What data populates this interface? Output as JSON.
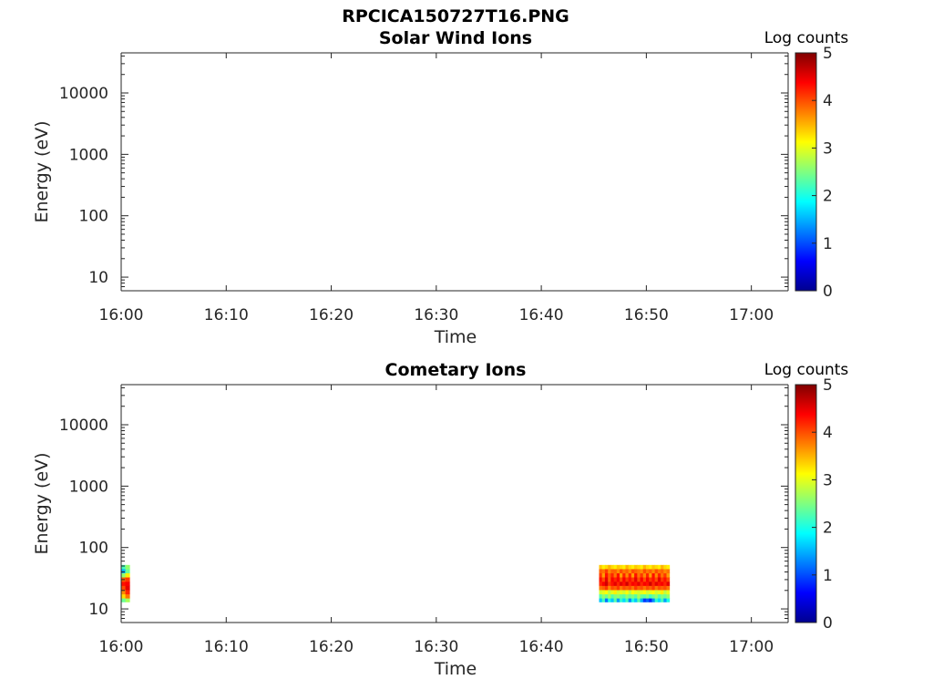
{
  "figure": {
    "title": "RPCICA150727T16.PNG"
  },
  "chart_data": [
    {
      "type": "heatmap",
      "title": "Solar Wind Ions",
      "xlabel": "Time",
      "ylabel": "Energy (eV)",
      "x_ticks": [
        "16:00",
        "16:10",
        "16:20",
        "16:30",
        "16:40",
        "16:50",
        "17:00"
      ],
      "x_range_minutes": [
        0,
        63.5
      ],
      "y_ticks": [
        "10",
        "100",
        "1000",
        "10000"
      ],
      "y_scale": "log",
      "y_range": [
        6,
        45000
      ],
      "colorbar": {
        "label": "Log counts",
        "ticks": [
          "0",
          "1",
          "2",
          "3",
          "4",
          "5"
        ],
        "range": [
          0,
          5
        ],
        "colormap": "jet"
      },
      "blocks": []
    },
    {
      "type": "heatmap",
      "title": "Cometary Ions",
      "xlabel": "Time",
      "ylabel": "Energy (eV)",
      "x_ticks": [
        "16:00",
        "16:10",
        "16:20",
        "16:30",
        "16:40",
        "16:50",
        "17:00"
      ],
      "x_range_minutes": [
        0,
        63.5
      ],
      "y_ticks": [
        "10",
        "100",
        "1000",
        "10000"
      ],
      "y_scale": "log",
      "y_range": [
        6,
        45000
      ],
      "colorbar": {
        "label": "Log counts",
        "ticks": [
          "0",
          "1",
          "2",
          "3",
          "4",
          "5"
        ],
        "range": [
          0,
          5
        ],
        "colormap": "jet"
      },
      "blocks": [
        {
          "time_start_min": 0,
          "time_end_min": 0.8,
          "energy_bins_eV": [
            13,
            15,
            17.5,
            20.5,
            24,
            28,
            33,
            38.5,
            45,
            52
          ],
          "log_counts": [
            [
              2.4,
              3.3,
              3.7,
              4.0,
              4.3,
              3.9,
              2.6,
              1.5,
              2.2
            ],
            [
              2.7,
              3.8,
              4.2,
              4.5,
              4.4,
              4.1,
              3.2,
              2.4,
              2.6
            ]
          ]
        },
        {
          "time_start_min": 45.5,
          "time_end_min": 52.2,
          "energy_bins_eV": [
            13,
            15,
            17.5,
            20.5,
            24,
            28,
            33,
            38.5,
            45,
            52
          ],
          "log_counts": [
            [
              1.6,
              2.3,
              2.9,
              3.8,
              4.2,
              4.3,
              4.1,
              3.9,
              3.4
            ],
            [
              2.2,
              2.6,
              3.0,
              3.9,
              4.4,
              4.0,
              3.6,
              3.8,
              3.2
            ],
            [
              1.2,
              2.4,
              3.1,
              4.1,
              4.6,
              4.5,
              4.3,
              4.1,
              3.3
            ],
            [
              2.0,
              2.7,
              2.8,
              3.7,
              4.1,
              3.9,
              3.9,
              3.7,
              3.5
            ],
            [
              1.6,
              2.3,
              3.0,
              4.0,
              4.3,
              4.4,
              4.2,
              3.9,
              3.3
            ],
            [
              2.3,
              2.5,
              3.2,
              3.9,
              4.5,
              4.2,
              3.8,
              3.9,
              3.2
            ],
            [
              1.4,
              2.6,
              2.9,
              4.1,
              4.2,
              4.4,
              4.3,
              3.7,
              3.4
            ],
            [
              2.1,
              2.4,
              3.0,
              3.8,
              4.5,
              4.0,
              3.6,
              4.0,
              3.3
            ],
            [
              1.7,
              2.3,
              2.9,
              4.0,
              4.3,
              4.4,
              4.2,
              3.8,
              3.2
            ],
            [
              2.2,
              2.6,
              3.1,
              3.9,
              4.6,
              4.1,
              3.7,
              3.9,
              3.5
            ],
            [
              1.3,
              2.4,
              2.8,
              4.0,
              4.2,
              4.3,
              4.2,
              3.7,
              3.3
            ],
            [
              2.0,
              2.5,
              3.1,
              3.8,
              4.4,
              4.1,
              3.6,
              4.0,
              3.2
            ],
            [
              1.6,
              2.3,
              3.0,
              4.1,
              4.3,
              4.5,
              4.3,
              3.9,
              3.4
            ],
            [
              2.3,
              2.7,
              2.9,
              3.9,
              4.5,
              4.0,
              3.8,
              3.8,
              3.3
            ],
            [
              1.5,
              2.4,
              3.0,
              4.0,
              4.2,
              4.4,
              4.1,
              3.7,
              3.2
            ],
            [
              0.9,
              2.3,
              3.1,
              3.8,
              4.4,
              4.0,
              3.7,
              4.0,
              3.5
            ],
            [
              1.1,
              2.5,
              2.9,
              4.0,
              4.3,
              4.4,
              4.2,
              3.8,
              3.3
            ],
            [
              0.8,
              2.2,
              3.0,
              3.9,
              4.6,
              4.1,
              3.6,
              3.9,
              3.2
            ],
            [
              1.3,
              2.4,
              3.1,
              4.1,
              4.2,
              4.3,
              4.3,
              3.7,
              3.4
            ],
            [
              2.1,
              2.6,
              2.9,
              3.8,
              4.5,
              4.0,
              3.7,
              4.0,
              3.3
            ],
            [
              1.7,
              2.3,
              3.0,
              4.0,
              4.3,
              4.5,
              4.2,
              3.8,
              3.2
            ],
            [
              2.2,
              2.5,
              3.2,
              3.9,
              4.4,
              4.1,
              3.8,
              3.9,
              3.5
            ],
            [
              1.4,
              2.4,
              2.8,
              4.0,
              4.2,
              4.3,
              4.1,
              3.7,
              3.3
            ],
            [
              2.0,
              2.6,
              3.0,
              3.8,
              4.5,
              4.0,
              3.6,
              3.8,
              3.2
            ]
          ]
        }
      ]
    }
  ]
}
